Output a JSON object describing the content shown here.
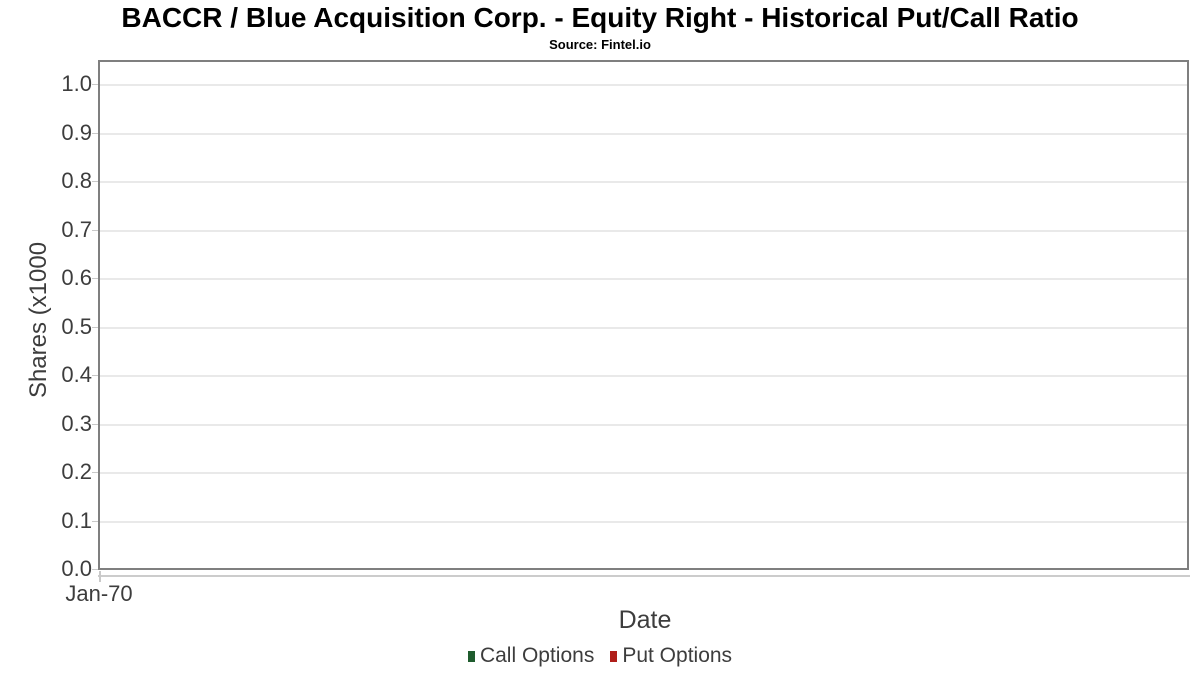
{
  "chart_data": {
    "type": "line",
    "title": "BACCR / Blue Acquisition Corp. - Equity Right - Historical Put/Call Ratio",
    "subtitle": "Source: Fintel.io",
    "xlabel": "Date",
    "ylabel": "Shares (x1000",
    "x_ticks": [
      "Jan-70"
    ],
    "y_ticks": [
      "0.0",
      "0.1",
      "0.2",
      "0.3",
      "0.4",
      "0.5",
      "0.6",
      "0.7",
      "0.8",
      "0.9",
      "1.0"
    ],
    "ylim": [
      0.0,
      1.05
    ],
    "grid": true,
    "legend_position": "bottom",
    "series": [
      {
        "name": "Call Options",
        "color": "#1f5c2e",
        "values": []
      },
      {
        "name": "Put Options",
        "color": "#b01e1a",
        "values": []
      }
    ]
  },
  "colors": {
    "plot_border": "#7f7f7f",
    "gridline": "#e9e9e9",
    "tick": "#c9c9c9",
    "axis_text": "#3d3d3d",
    "title_text": "#000000"
  }
}
